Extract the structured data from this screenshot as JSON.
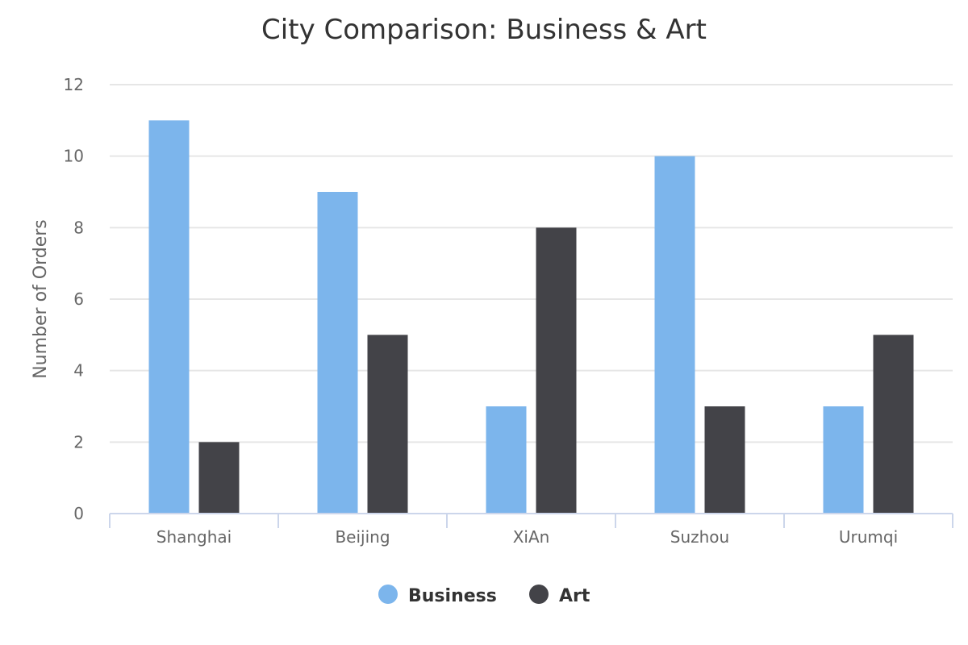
{
  "chart_data": {
    "type": "bar",
    "title": "City Comparison: Business & Art",
    "xlabel": "",
    "ylabel": "Number of Orders",
    "categories": [
      "Shanghai",
      "Beijing",
      "XiAn",
      "Suzhou",
      "Urumqi"
    ],
    "series": [
      {
        "name": "Business",
        "color": "#7cb5ec",
        "values": [
          11,
          9,
          3,
          10,
          3
        ]
      },
      {
        "name": "Art",
        "color": "#434348",
        "values": [
          2,
          5,
          8,
          3,
          5
        ]
      }
    ],
    "ylim": [
      0,
      12
    ],
    "yticks": [
      0,
      2,
      4,
      6,
      8,
      10,
      12
    ],
    "grid": true,
    "legend": "bottom-center"
  }
}
